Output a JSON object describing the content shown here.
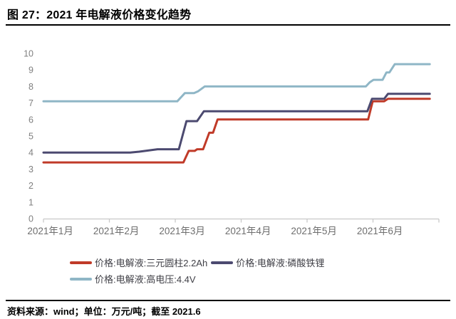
{
  "header": {
    "title": "图 27：2021 年电解液价格变化趋势"
  },
  "footer": {
    "text": "资料来源：wind；单位：万元/吨；截至 2021.6"
  },
  "colors": {
    "axis_line": "#c9c9c9",
    "y_label": "#7f7f7f",
    "x_label": "#6e6e6e",
    "legend_text": "#3f3f46",
    "rule": "#000000",
    "series_red": "#c03a28",
    "series_dark_blue": "#4c4a70",
    "series_light_blue": "#8fb6c6"
  },
  "chart_data": {
    "type": "line",
    "title": "2021 年电解液价格变化趋势",
    "unit": "万元/吨",
    "grid": false,
    "legend_position": "bottom",
    "x_axis": {
      "unit": "周（0 = 2021年1月初，26 = 2021年6月末）",
      "tick_labels": [
        "2021年1月",
        "2021年2月",
        "2021年3月",
        "2021年4月",
        "2021年5月",
        "2021年6月"
      ]
    },
    "y_axis": {
      "min": 0,
      "max": 10,
      "ticks": [
        0,
        1,
        2,
        3,
        4,
        5,
        6,
        7,
        8,
        9,
        10
      ]
    },
    "series": [
      {
        "name": "价格:电解液:三元圆柱2.2Ah",
        "color": "#c03a28",
        "points": [
          [
            0,
            3.4
          ],
          [
            9.2,
            3.4
          ],
          [
            9.55,
            4.1
          ],
          [
            9.95,
            4.1
          ],
          [
            10.1,
            4.2
          ],
          [
            10.5,
            4.2
          ],
          [
            10.9,
            5.2
          ],
          [
            11.15,
            5.2
          ],
          [
            11.45,
            6.0
          ],
          [
            21.35,
            6.0
          ],
          [
            21.65,
            7.1
          ],
          [
            22.4,
            7.1
          ],
          [
            22.65,
            7.25
          ],
          [
            25.4,
            7.25
          ]
        ]
      },
      {
        "name": "价格:电解液:磷酸铁锂",
        "color": "#4c4a70",
        "points": [
          [
            0,
            4.0
          ],
          [
            5.7,
            4.0
          ],
          [
            6.3,
            4.05
          ],
          [
            7.5,
            4.2
          ],
          [
            8.9,
            4.2
          ],
          [
            9.4,
            5.9
          ],
          [
            10.1,
            5.9
          ],
          [
            10.55,
            6.5
          ],
          [
            21.3,
            6.5
          ],
          [
            21.6,
            7.25
          ],
          [
            22.4,
            7.25
          ],
          [
            22.65,
            7.55
          ],
          [
            25.4,
            7.55
          ]
        ]
      },
      {
        "name": "价格:电解液:高电压:4.4V",
        "color": "#8fb6c6",
        "points": [
          [
            0,
            7.1
          ],
          [
            8.8,
            7.1
          ],
          [
            9.3,
            7.6
          ],
          [
            9.9,
            7.6
          ],
          [
            10.15,
            7.7
          ],
          [
            10.6,
            8.0
          ],
          [
            21.2,
            8.0
          ],
          [
            21.45,
            8.25
          ],
          [
            21.7,
            8.4
          ],
          [
            22.3,
            8.4
          ],
          [
            22.55,
            8.85
          ],
          [
            22.75,
            8.85
          ],
          [
            23.1,
            9.35
          ],
          [
            25.4,
            9.35
          ]
        ]
      }
    ]
  }
}
